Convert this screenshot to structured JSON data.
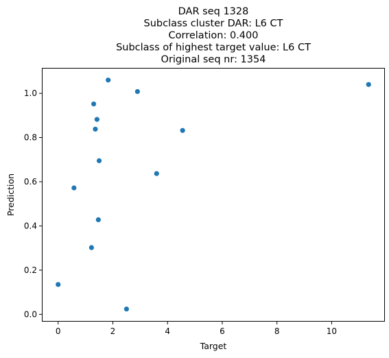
{
  "chart_data": {
    "type": "scatter",
    "title_lines": [
      "DAR seq 1328",
      "Subclass cluster DAR: L6 CT",
      "Correlation: 0.400",
      "Subclass of highest target value: L6 CT",
      "Original seq nr: 1354"
    ],
    "xlabel": "Target",
    "ylabel": "Prediction",
    "xlim": [
      -0.57,
      11.92
    ],
    "ylim": [
      -0.03,
      1.112
    ],
    "xticks": [
      0,
      2,
      4,
      6,
      8,
      10
    ],
    "yticks": [
      0.0,
      0.2,
      0.4,
      0.6,
      0.8,
      1.0
    ],
    "xtick_labels": [
      "0",
      "2",
      "4",
      "6",
      "8",
      "10"
    ],
    "ytick_labels": [
      "0.0",
      "0.2",
      "0.4",
      "0.6",
      "0.8",
      "1.0"
    ],
    "grid": false,
    "point_color": "#1f77b4",
    "points": [
      {
        "x": 0.0,
        "y": 0.135
      },
      {
        "x": 0.58,
        "y": 0.572
      },
      {
        "x": 1.22,
        "y": 0.302
      },
      {
        "x": 1.3,
        "y": 0.952
      },
      {
        "x": 1.36,
        "y": 0.838
      },
      {
        "x": 1.42,
        "y": 0.882
      },
      {
        "x": 1.47,
        "y": 0.428
      },
      {
        "x": 1.5,
        "y": 0.695
      },
      {
        "x": 1.83,
        "y": 1.06
      },
      {
        "x": 2.5,
        "y": 0.024
      },
      {
        "x": 2.9,
        "y": 1.008
      },
      {
        "x": 3.6,
        "y": 0.637
      },
      {
        "x": 4.55,
        "y": 0.832
      },
      {
        "x": 11.35,
        "y": 1.04
      }
    ]
  }
}
